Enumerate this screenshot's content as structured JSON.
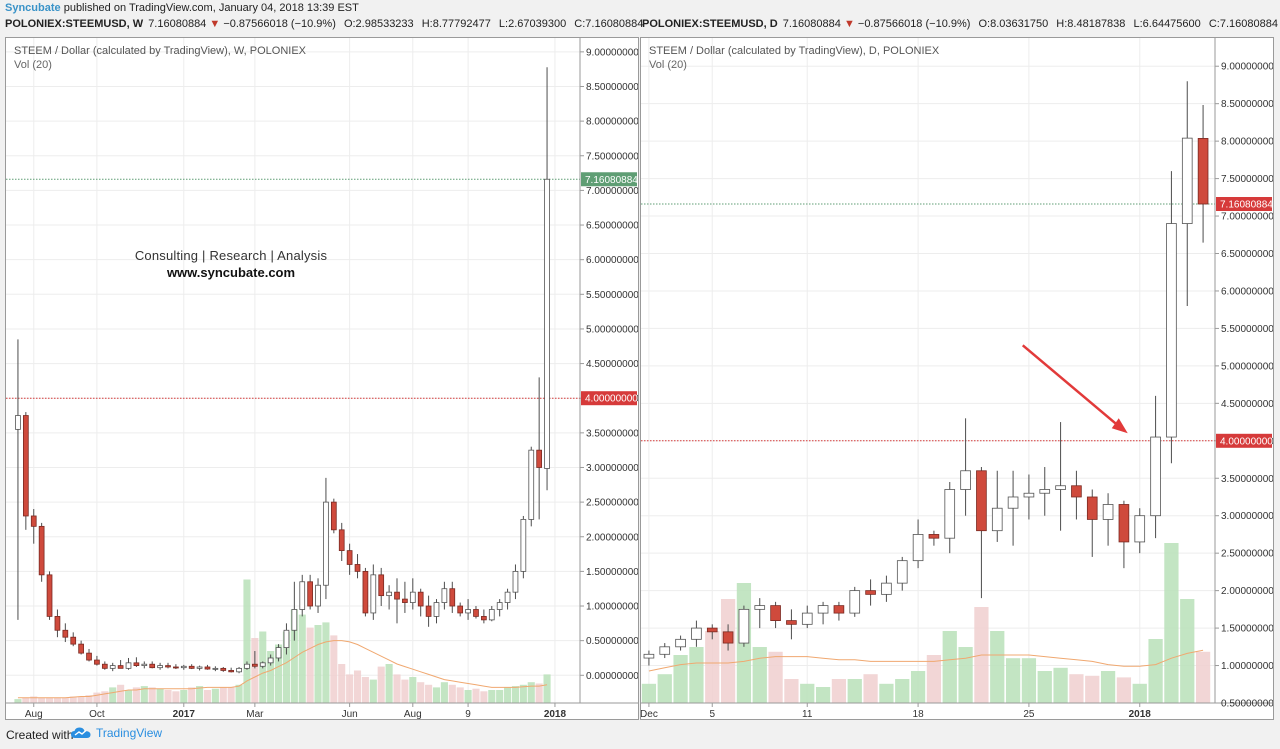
{
  "header": {
    "author": "Syncubate",
    "published": "published on TradingView.com, January 04, 2018 13:39 EST"
  },
  "quote_left": {
    "symbol": "POLONIEX:STEEMUSD, W",
    "last": "7.16080884",
    "arrow": "▼",
    "change": "−0.87566018 (−10.9%)",
    "o": "O:2.98533233",
    "h": "H:8.77792477",
    "l": "L:2.67039300",
    "c": "C:7.16080884"
  },
  "quote_right": {
    "symbol": "POLONIEX:STEEMUSD, D",
    "last": "7.16080884",
    "arrow": "▼",
    "change": "−0.87566018 (−10.9%)",
    "o": "O:8.03631750",
    "h": "H:8.48187838",
    "l": "L:6.64475600",
    "c": "C:7.16080884"
  },
  "watermark": {
    "line1": "Consulting  |  Research  |  Analysis",
    "line2": "www.syncubate.com"
  },
  "footer": {
    "created_with": "Created with",
    "brand": "TradingView"
  },
  "colors": {
    "up": "#ffffff",
    "down": "#cf4a3c",
    "wick": "#4d4d4d",
    "vol_up": "#b9e0b9",
    "vol_down": "#f0cfcf",
    "vol_ma": "#f0a870",
    "support_line": "#d63a3a",
    "last_line": "#5f9e74",
    "last_label_left": "#5f9e74",
    "last_label_right": "#d63a3a"
  },
  "chart_data": [
    {
      "type": "candlestick",
      "title": "STEEM / Dollar (calculated by TradingView), W, POLONIEX",
      "subtitle": "Vol (20)",
      "interval": "W",
      "ylim": [
        -0.4,
        9.2
      ],
      "y_ticks": [
        "0.00000000",
        "0.50000000",
        "1.00000000",
        "1.50000000",
        "2.00000000",
        "2.50000000",
        "3.00000000",
        "3.50000000",
        "4.00000000",
        "4.50000000",
        "5.00000000",
        "5.50000000",
        "6.00000000",
        "6.50000000",
        "7.00000000",
        "7.50000000",
        "8.00000000",
        "8.50000000",
        "9.00000000"
      ],
      "x_ticks": [
        {
          "label": "Aug",
          "index": 2
        },
        {
          "label": "Oct",
          "index": 10
        },
        {
          "label": "2017",
          "index": 21
        },
        {
          "label": "Mar",
          "index": 30
        },
        {
          "label": "Jun",
          "index": 42
        },
        {
          "label": "Aug",
          "index": 50
        },
        {
          "label": "9",
          "index": 57
        },
        {
          "label": "2018",
          "index": 68
        }
      ],
      "horizontal_lines": [
        {
          "value": 4.0,
          "label": "4.00000000",
          "kind": "support"
        },
        {
          "value": 7.16080884,
          "label": "7.16080884",
          "kind": "last"
        }
      ],
      "ohlc": [
        [
          3.55,
          4.85,
          0.8,
          3.75
        ],
        [
          3.75,
          3.8,
          2.1,
          2.3
        ],
        [
          2.3,
          2.4,
          1.9,
          2.15
        ],
        [
          2.15,
          2.2,
          1.35,
          1.45
        ],
        [
          1.45,
          1.5,
          0.8,
          0.85
        ],
        [
          0.85,
          0.95,
          0.55,
          0.65
        ],
        [
          0.65,
          0.75,
          0.48,
          0.55
        ],
        [
          0.55,
          0.62,
          0.42,
          0.45
        ],
        [
          0.45,
          0.5,
          0.3,
          0.32
        ],
        [
          0.32,
          0.38,
          0.2,
          0.22
        ],
        [
          0.22,
          0.28,
          0.14,
          0.16
        ],
        [
          0.16,
          0.2,
          0.08,
          0.1
        ],
        [
          0.1,
          0.18,
          0.06,
          0.14
        ],
        [
          0.14,
          0.22,
          0.1,
          0.1
        ],
        [
          0.1,
          0.25,
          0.08,
          0.18
        ],
        [
          0.18,
          0.26,
          0.12,
          0.14
        ],
        [
          0.14,
          0.2,
          0.1,
          0.16
        ],
        [
          0.16,
          0.2,
          0.1,
          0.11
        ],
        [
          0.11,
          0.18,
          0.08,
          0.14
        ],
        [
          0.14,
          0.18,
          0.1,
          0.12
        ],
        [
          0.12,
          0.16,
          0.09,
          0.11
        ],
        [
          0.11,
          0.15,
          0.08,
          0.13
        ],
        [
          0.13,
          0.16,
          0.09,
          0.1
        ],
        [
          0.1,
          0.14,
          0.07,
          0.12
        ],
        [
          0.12,
          0.15,
          0.08,
          0.09
        ],
        [
          0.09,
          0.13,
          0.06,
          0.1
        ],
        [
          0.1,
          0.12,
          0.05,
          0.07
        ],
        [
          0.07,
          0.11,
          0.04,
          0.05
        ],
        [
          0.05,
          0.12,
          0.03,
          0.1
        ],
        [
          0.1,
          0.2,
          0.08,
          0.16
        ],
        [
          0.16,
          0.35,
          0.1,
          0.13
        ],
        [
          0.13,
          0.2,
          0.1,
          0.18
        ],
        [
          0.18,
          0.3,
          0.14,
          0.25
        ],
        [
          0.25,
          0.45,
          0.2,
          0.4
        ],
        [
          0.4,
          0.75,
          0.3,
          0.65
        ],
        [
          0.65,
          1.35,
          0.5,
          0.95
        ],
        [
          0.95,
          1.45,
          0.85,
          1.35
        ],
        [
          1.35,
          1.45,
          0.95,
          1.0
        ],
        [
          1.0,
          1.4,
          0.9,
          1.3
        ],
        [
          1.3,
          2.85,
          1.1,
          2.5
        ],
        [
          2.5,
          2.55,
          2.05,
          2.1
        ],
        [
          2.1,
          2.2,
          1.65,
          1.8
        ],
        [
          1.8,
          1.9,
          1.45,
          1.6
        ],
        [
          1.6,
          1.75,
          1.4,
          1.5
        ],
        [
          1.5,
          1.55,
          0.85,
          0.9
        ],
        [
          0.9,
          1.6,
          0.8,
          1.45
        ],
        [
          1.45,
          1.55,
          1.0,
          1.15
        ],
        [
          1.15,
          1.3,
          0.95,
          1.2
        ],
        [
          1.2,
          1.4,
          0.75,
          1.1
        ],
        [
          1.1,
          1.35,
          0.9,
          1.05
        ],
        [
          1.05,
          1.4,
          0.95,
          1.2
        ],
        [
          1.2,
          1.25,
          0.85,
          1.0
        ],
        [
          1.0,
          1.15,
          0.7,
          0.85
        ],
        [
          0.85,
          1.1,
          0.75,
          1.05
        ],
        [
          1.05,
          1.35,
          0.95,
          1.25
        ],
        [
          1.25,
          1.35,
          0.9,
          1.0
        ],
        [
          1.0,
          1.05,
          0.85,
          0.9
        ],
        [
          0.9,
          1.1,
          0.8,
          0.95
        ],
        [
          0.95,
          1.0,
          0.82,
          0.85
        ],
        [
          0.85,
          0.95,
          0.75,
          0.8
        ],
        [
          0.8,
          1.0,
          0.78,
          0.95
        ],
        [
          0.95,
          1.1,
          0.85,
          1.05
        ],
        [
          1.05,
          1.25,
          0.95,
          1.2
        ],
        [
          1.2,
          1.6,
          1.1,
          1.5
        ],
        [
          1.5,
          2.3,
          1.4,
          2.25
        ],
        [
          2.25,
          3.3,
          2.15,
          3.25
        ],
        [
          3.25,
          4.3,
          2.25,
          3.0
        ],
        [
          2.98533233,
          8.77792477,
          2.670393,
          7.16080884
        ]
      ],
      "volume_max": 1.0,
      "volume": [
        0.03,
        0.04,
        0.05,
        0.04,
        0.04,
        0.04,
        0.04,
        0.05,
        0.05,
        0.06,
        0.08,
        0.09,
        0.12,
        0.14,
        0.1,
        0.12,
        0.13,
        0.12,
        0.11,
        0.1,
        0.09,
        0.1,
        0.12,
        0.13,
        0.1,
        0.11,
        0.12,
        0.12,
        0.14,
        0.95,
        0.5,
        0.55,
        0.4,
        0.45,
        0.55,
        0.72,
        0.68,
        0.58,
        0.6,
        0.62,
        0.52,
        0.3,
        0.22,
        0.25,
        0.2,
        0.18,
        0.28,
        0.3,
        0.22,
        0.18,
        0.2,
        0.16,
        0.14,
        0.12,
        0.16,
        0.14,
        0.12,
        0.1,
        0.11,
        0.09,
        0.1,
        0.1,
        0.12,
        0.13,
        0.14,
        0.16,
        0.15,
        0.22
      ],
      "volume_ma": [
        0.04,
        0.04,
        0.04,
        0.04,
        0.04,
        0.04,
        0.04,
        0.045,
        0.05,
        0.05,
        0.06,
        0.07,
        0.08,
        0.09,
        0.1,
        0.1,
        0.11,
        0.11,
        0.11,
        0.11,
        0.11,
        0.11,
        0.11,
        0.115,
        0.12,
        0.12,
        0.12,
        0.12,
        0.13,
        0.17,
        0.2,
        0.23,
        0.25,
        0.28,
        0.31,
        0.35,
        0.39,
        0.42,
        0.45,
        0.47,
        0.48,
        0.48,
        0.47,
        0.45,
        0.42,
        0.39,
        0.36,
        0.33,
        0.3,
        0.28,
        0.26,
        0.24,
        0.22,
        0.2,
        0.18,
        0.17,
        0.16,
        0.15,
        0.14,
        0.13,
        0.12,
        0.12,
        0.12,
        0.12,
        0.125,
        0.13,
        0.13,
        0.14
      ]
    },
    {
      "type": "candlestick",
      "title": "STEEM / Dollar (calculated by TradingView), D, POLONIEX",
      "subtitle": "Vol (20)",
      "interval": "D",
      "ylim": [
        0.5,
        9.35
      ],
      "y_ticks": [
        "0.50000000",
        "1.00000000",
        "1.50000000",
        "2.00000000",
        "2.50000000",
        "3.00000000",
        "3.50000000",
        "4.00000000",
        "4.50000000",
        "5.00000000",
        "5.50000000",
        "6.00000000",
        "6.50000000",
        "7.00000000",
        "7.50000000",
        "8.00000000",
        "8.50000000",
        "9.00000000"
      ],
      "x_ticks": [
        {
          "label": "Dec",
          "index": 0
        },
        {
          "label": "5",
          "index": 4
        },
        {
          "label": "11",
          "index": 10
        },
        {
          "label": "18",
          "index": 17
        },
        {
          "label": "25",
          "index": 24
        },
        {
          "label": "2018",
          "index": 31
        }
      ],
      "horizontal_lines": [
        {
          "value": 4.0,
          "label": "4.00000000",
          "kind": "support"
        },
        {
          "value": 7.16080884,
          "label": "7.16080884",
          "kind": "last"
        }
      ],
      "annotation": {
        "type": "arrow",
        "target_index": 31,
        "target_value": 4.1
      },
      "ohlc": [
        [
          1.1,
          1.2,
          1.0,
          1.15
        ],
        [
          1.15,
          1.3,
          1.1,
          1.25
        ],
        [
          1.25,
          1.4,
          1.2,
          1.35
        ],
        [
          1.35,
          1.6,
          1.25,
          1.5
        ],
        [
          1.5,
          1.55,
          1.35,
          1.45
        ],
        [
          1.45,
          1.55,
          1.2,
          1.3
        ],
        [
          1.3,
          1.8,
          1.25,
          1.75
        ],
        [
          1.75,
          1.9,
          1.5,
          1.8
        ],
        [
          1.8,
          1.85,
          1.5,
          1.6
        ],
        [
          1.6,
          1.75,
          1.35,
          1.55
        ],
        [
          1.55,
          1.8,
          1.5,
          1.7
        ],
        [
          1.7,
          1.85,
          1.55,
          1.8
        ],
        [
          1.8,
          1.85,
          1.6,
          1.7
        ],
        [
          1.7,
          2.05,
          1.65,
          2.0
        ],
        [
          2.0,
          2.15,
          1.8,
          1.95
        ],
        [
          1.95,
          2.2,
          1.85,
          2.1
        ],
        [
          2.1,
          2.45,
          2.0,
          2.4
        ],
        [
          2.4,
          2.95,
          2.3,
          2.75
        ],
        [
          2.75,
          2.8,
          2.6,
          2.7
        ],
        [
          2.7,
          3.45,
          2.5,
          3.35
        ],
        [
          3.35,
          4.3,
          3.0,
          3.6
        ],
        [
          3.6,
          3.65,
          1.9,
          2.8
        ],
        [
          2.8,
          3.6,
          2.65,
          3.1
        ],
        [
          3.1,
          3.6,
          2.6,
          3.25
        ],
        [
          3.25,
          3.55,
          2.95,
          3.3
        ],
        [
          3.3,
          3.65,
          3.0,
          3.35
        ],
        [
          3.35,
          4.25,
          2.8,
          3.4
        ],
        [
          3.4,
          3.6,
          2.95,
          3.25
        ],
        [
          3.25,
          3.35,
          2.45,
          2.95
        ],
        [
          2.95,
          3.3,
          2.6,
          3.15
        ],
        [
          3.15,
          3.2,
          2.3,
          2.65
        ],
        [
          2.65,
          3.1,
          2.5,
          3.0
        ],
        [
          3.0,
          4.6,
          2.7,
          4.05
        ],
        [
          4.05,
          7.6,
          3.7,
          6.9
        ],
        [
          6.9,
          8.8,
          5.8,
          8.04
        ],
        [
          8.0363175,
          8.48187838,
          6.644756,
          7.16080884
        ]
      ],
      "volume_max": 1.0,
      "volume": [
        0.12,
        0.18,
        0.3,
        0.35,
        0.45,
        0.65,
        0.75,
        0.35,
        0.32,
        0.15,
        0.12,
        0.1,
        0.15,
        0.15,
        0.18,
        0.12,
        0.15,
        0.2,
        0.3,
        0.45,
        0.35,
        0.6,
        0.45,
        0.28,
        0.28,
        0.2,
        0.22,
        0.18,
        0.17,
        0.2,
        0.16,
        0.12,
        0.4,
        1.0,
        0.65,
        0.32
      ],
      "volume_ma": [
        0.2,
        0.22,
        0.24,
        0.25,
        0.25,
        0.25,
        0.26,
        0.28,
        0.29,
        0.29,
        0.29,
        0.28,
        0.27,
        0.27,
        0.26,
        0.26,
        0.26,
        0.26,
        0.26,
        0.27,
        0.28,
        0.3,
        0.3,
        0.3,
        0.3,
        0.29,
        0.28,
        0.27,
        0.26,
        0.24,
        0.23,
        0.23,
        0.24,
        0.28,
        0.31,
        0.33
      ]
    }
  ]
}
